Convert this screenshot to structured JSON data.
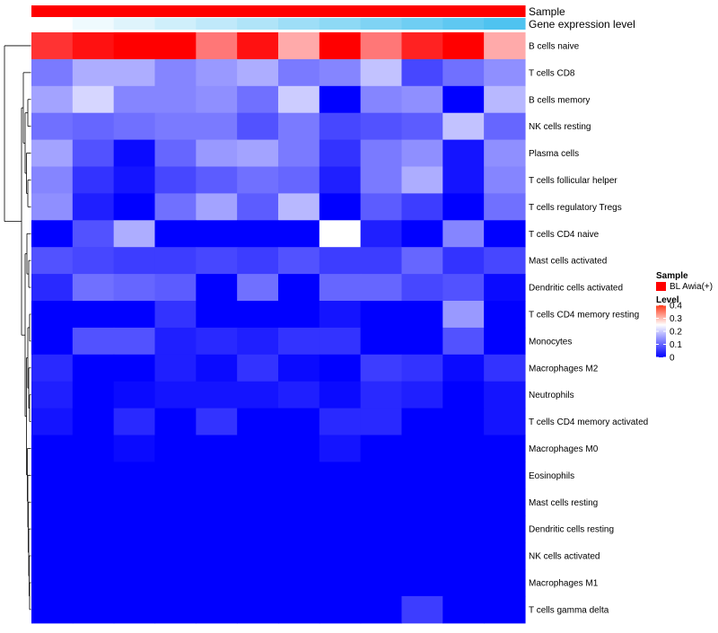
{
  "chart_data": {
    "type": "heatmap",
    "annotation_tracks": [
      {
        "name": "Sample",
        "label": "Sample",
        "color": "#ff0000"
      },
      {
        "name": "Gene expression level",
        "label": "Gene expression level",
        "gradient": [
          "#ffffff",
          "#4fc3f0"
        ]
      }
    ],
    "rows": [
      "B cells naive",
      "T cells CD8",
      "B cells memory",
      "NK cells resting",
      "Plasma cells",
      "T cells follicular helper",
      "T cells regulatory  Tregs",
      "T cells CD4 naive",
      "Mast cells activated",
      "Dendritic cells activated",
      "T cells CD4 memory resting",
      "Monocytes",
      "Macrophages M2",
      "Neutrophils",
      "T cells CD4 memory activated",
      "Macrophages M0",
      "Eosinophils",
      "Mast cells resting",
      "Dendritic cells resting",
      "NK cells activated",
      "Macrophages M1",
      "T cells gamma delta"
    ],
    "n_columns": 12,
    "values": [
      [
        0.37,
        0.39,
        0.4,
        0.4,
        0.33,
        0.39,
        0.3,
        0.4,
        0.33,
        0.38,
        0.4,
        0.3
      ],
      [
        0.12,
        0.17,
        0.17,
        0.13,
        0.15,
        0.17,
        0.12,
        0.13,
        0.19,
        0.07,
        0.11,
        0.14
      ],
      [
        0.16,
        0.21,
        0.13,
        0.13,
        0.14,
        0.11,
        0.2,
        0.0,
        0.13,
        0.14,
        0.0,
        0.18
      ],
      [
        0.11,
        0.1,
        0.11,
        0.12,
        0.12,
        0.08,
        0.12,
        0.07,
        0.08,
        0.09,
        0.19,
        0.1
      ],
      [
        0.16,
        0.08,
        0.01,
        0.1,
        0.15,
        0.16,
        0.12,
        0.05,
        0.12,
        0.14,
        0.02,
        0.14
      ],
      [
        0.13,
        0.05,
        0.02,
        0.07,
        0.09,
        0.11,
        0.1,
        0.03,
        0.12,
        0.17,
        0.02,
        0.13
      ],
      [
        0.14,
        0.03,
        0.0,
        0.11,
        0.16,
        0.09,
        0.18,
        0.0,
        0.09,
        0.06,
        0.0,
        0.11
      ],
      [
        0.0,
        0.08,
        0.17,
        0.0,
        0.0,
        0.0,
        0.0,
        0.25,
        0.03,
        0.0,
        0.13,
        0.0
      ],
      [
        0.08,
        0.07,
        0.06,
        0.06,
        0.07,
        0.06,
        0.08,
        0.06,
        0.06,
        0.1,
        0.05,
        0.07
      ],
      [
        0.04,
        0.11,
        0.1,
        0.09,
        0.0,
        0.11,
        0.0,
        0.1,
        0.1,
        0.07,
        0.08,
        0.01
      ],
      [
        0.0,
        0.0,
        0.0,
        0.05,
        0.0,
        0.0,
        0.0,
        0.02,
        0.0,
        0.0,
        0.15,
        0.0
      ],
      [
        0.0,
        0.08,
        0.08,
        0.03,
        0.04,
        0.03,
        0.05,
        0.05,
        0.0,
        0.0,
        0.08,
        0.0
      ],
      [
        0.04,
        0.0,
        0.0,
        0.03,
        0.01,
        0.05,
        0.01,
        0.0,
        0.06,
        0.05,
        0.01,
        0.05
      ],
      [
        0.03,
        0.0,
        0.01,
        0.02,
        0.02,
        0.02,
        0.03,
        0.01,
        0.04,
        0.03,
        0.0,
        0.02
      ],
      [
        0.02,
        0.0,
        0.04,
        0.0,
        0.05,
        0.0,
        0.0,
        0.04,
        0.04,
        0.0,
        0.0,
        0.02
      ],
      [
        0.0,
        0.0,
        0.01,
        0.0,
        0.0,
        0.0,
        0.0,
        0.02,
        0.0,
        0.0,
        0.0,
        0.0
      ],
      [
        0.0,
        0.0,
        0.0,
        0.0,
        0.0,
        0.0,
        0.0,
        0.0,
        0.0,
        0.0,
        0.0,
        0.0
      ],
      [
        0.0,
        0.0,
        0.0,
        0.0,
        0.0,
        0.0,
        0.0,
        0.0,
        0.0,
        0.0,
        0.0,
        0.0
      ],
      [
        0.0,
        0.0,
        0.0,
        0.0,
        0.0,
        0.0,
        0.0,
        0.0,
        0.0,
        0.0,
        0.0,
        0.0
      ],
      [
        0.0,
        0.0,
        0.0,
        0.0,
        0.0,
        0.0,
        0.0,
        0.0,
        0.0,
        0.0,
        0.0,
        0.0
      ],
      [
        0.0,
        0.0,
        0.0,
        0.0,
        0.0,
        0.0,
        0.0,
        0.0,
        0.0,
        0.0,
        0.0,
        0.0
      ],
      [
        0.0,
        0.0,
        0.0,
        0.0,
        0.0,
        0.0,
        0.0,
        0.0,
        0.0,
        0.06,
        0.0,
        0.0
      ]
    ],
    "color_scale": {
      "min": 0,
      "max": 0.4,
      "low": "#0000ff",
      "mid": "#ffffff",
      "high": "#ff0000",
      "mid_value": 0.25
    },
    "gene_expression_gradient": [
      0.0,
      0.09,
      0.18,
      0.27,
      0.36,
      0.45,
      0.55,
      0.64,
      0.73,
      0.82,
      0.91,
      1.0
    ],
    "legend": {
      "sample_title": "Sample",
      "sample_entry": "BL Awia(+)",
      "level_title": "Level",
      "ticks": [
        0.4,
        0.3,
        0.2,
        0.1,
        0
      ],
      "tick_labels": [
        "0.4",
        "0.3",
        "0.2",
        "0.1",
        "0"
      ]
    },
    "dendrogram": "row"
  }
}
